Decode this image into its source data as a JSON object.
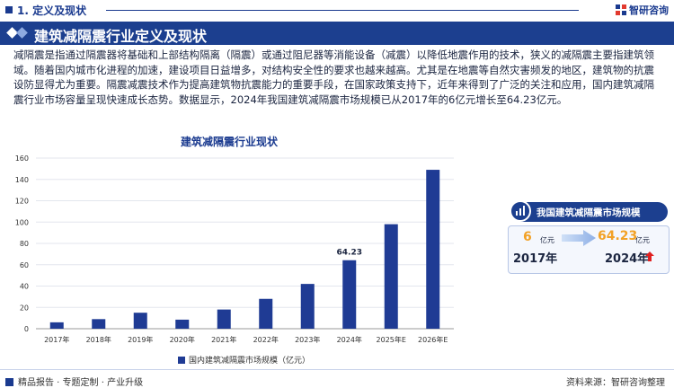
{
  "header": {
    "section": "1. 定义及现状",
    "brand": "智研咨询",
    "title": "建筑减隔震行业定义及现状"
  },
  "paragraph": "减隔震是指通过隔震器将基础和上部结构隔离（隔震）或通过阻尼器等消能设备（减震）以降低地震作用的技术，狭义的减隔震主要指建筑领域。随着国内城市化进程的加速，建设项目日益增多，对结构安全性的要求也越来越高。尤其是在地震等自然灾害频发的地区，建筑物的抗震设防显得尤为重要。隔震减震技术作为提高建筑物抗震能力的重要手段，在国家政策支持下，近年来得到了广泛的关注和应用，国内建筑减隔震行业市场容量呈现快速成长态势。数据显示，2024年我国建筑减隔震市场规模已从2017年的6亿元增长至64.23亿元。",
  "chart_data": {
    "type": "bar",
    "title": "建筑减隔震行业现状",
    "categories": [
      "2017年",
      "2018年",
      "2019年",
      "2020年",
      "2021年",
      "2022年",
      "2023年",
      "2024年",
      "2025年E",
      "2026年E"
    ],
    "series": [
      {
        "name": "国内建筑减隔震市场规模（亿元）",
        "values": [
          6,
          9,
          15,
          8.5,
          18,
          28,
          42,
          64.23,
          98,
          149
        ],
        "color": "#1f3b94"
      }
    ],
    "data_labels": {
      "2024年": "64.23"
    },
    "ylim": [
      0,
      160
    ],
    "yticks": [
      "0",
      "20",
      "40",
      "60",
      "80",
      "100",
      "120",
      "140",
      "160"
    ],
    "grid": true,
    "legend": "bottom"
  },
  "panel": {
    "title": "我国建筑减隔震市场规模",
    "start_value": "6",
    "start_unit": "亿元",
    "start_year": "2017年",
    "end_value": "64.23",
    "end_unit": "亿元",
    "end_year": "2024年"
  },
  "footer": {
    "left": "精品报告 · 专题定制 · 产业升级",
    "right": "资料来源：智研咨询整理"
  }
}
